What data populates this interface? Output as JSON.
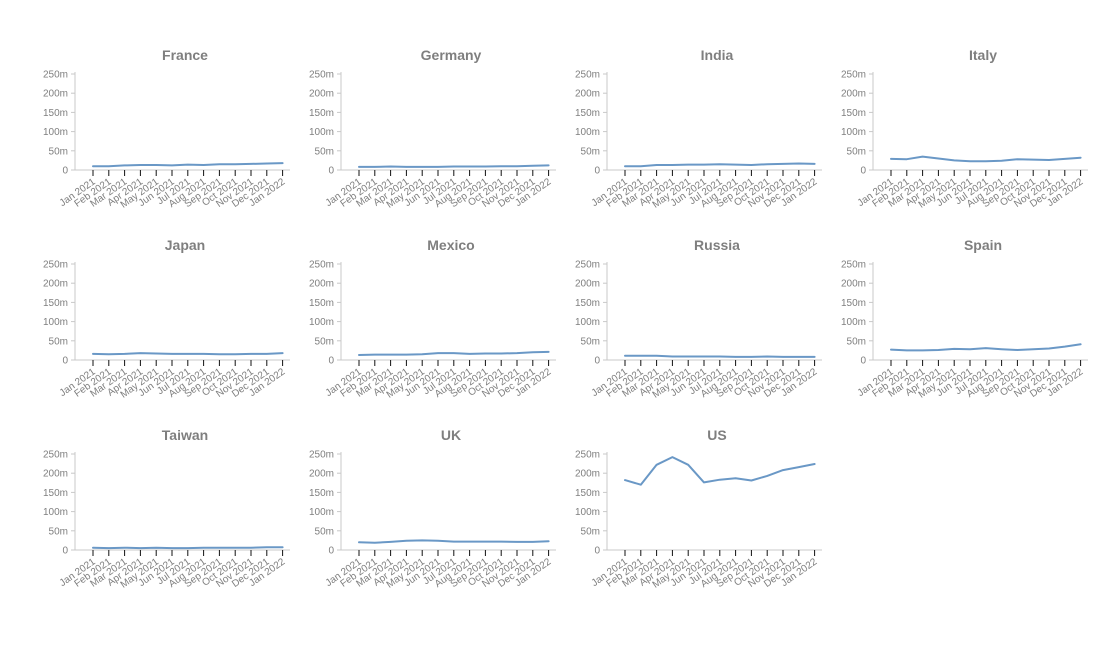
{
  "colors": {
    "line": "#6a98c6",
    "text": "#7f7f7f",
    "axis": "#c8c8c8",
    "tick": "#111111"
  },
  "chart_data": {
    "type": "line",
    "layout": "small-multiples",
    "x": [
      "Jan 2021",
      "Feb 2021",
      "Mar 2021",
      "Apr 2021",
      "May 2021",
      "Jun 2021",
      "Jul 2021",
      "Aug 2021",
      "Sep 2021",
      "Oct 2021",
      "Nov 2021",
      "Dec 2021",
      "Jan 2022"
    ],
    "y_ticks": [
      0,
      50000000,
      100000000,
      150000000,
      200000000,
      250000000
    ],
    "y_tick_labels": [
      "0",
      "50m",
      "100m",
      "150m",
      "200m",
      "250m"
    ],
    "ylim": [
      0,
      260000000
    ],
    "grid": false,
    "panels": [
      {
        "title": "France",
        "values": [
          10000000.0,
          10000000.0,
          12000000.0,
          13000000.0,
          13000000.0,
          12000000.0,
          14000000.0,
          13000000.0,
          15000000.0,
          15000000.0,
          16000000.0,
          17000000.0,
          18000000.0
        ]
      },
      {
        "title": "Germany",
        "values": [
          8000000.0,
          8000000.0,
          9000000.0,
          8000000.0,
          8000000.0,
          8000000.0,
          9000000.0,
          9000000.0,
          9000000.0,
          10000000.0,
          10000000.0,
          11000000.0,
          12000000.0
        ]
      },
      {
        "title": "India",
        "values": [
          10000000.0,
          10000000.0,
          13000000.0,
          13000000.0,
          14000000.0,
          14000000.0,
          15000000.0,
          14000000.0,
          13000000.0,
          15000000.0,
          16000000.0,
          17000000.0,
          16000000.0
        ]
      },
      {
        "title": "Italy",
        "values": [
          29000000.0,
          28000000.0,
          35000000.0,
          30000000.0,
          25000000.0,
          23000000.0,
          23000000.0,
          24000000.0,
          28000000.0,
          27000000.0,
          26000000.0,
          29000000.0,
          32000000.0
        ]
      },
      {
        "title": "Japan",
        "values": [
          16000000.0,
          15000000.0,
          16000000.0,
          18000000.0,
          17000000.0,
          16000000.0,
          16000000.0,
          16000000.0,
          15000000.0,
          15000000.0,
          16000000.0,
          16000000.0,
          18000000.0
        ]
      },
      {
        "title": "Mexico",
        "values": [
          13000000.0,
          14000000.0,
          14000000.0,
          14000000.0,
          15000000.0,
          18000000.0,
          18000000.0,
          16000000.0,
          17000000.0,
          17000000.0,
          18000000.0,
          20000000.0,
          21000000.0
        ]
      },
      {
        "title": "Russia",
        "values": [
          11000000.0,
          11000000.0,
          11000000.0,
          9000000.0,
          9000000.0,
          9000000.0,
          9000000.0,
          8000000.0,
          8000000.0,
          9000000.0,
          8000000.0,
          8000000.0,
          8000000.0
        ]
      },
      {
        "title": "Spain",
        "values": [
          27000000.0,
          25000000.0,
          25000000.0,
          26000000.0,
          29000000.0,
          28000000.0,
          31000000.0,
          28000000.0,
          26000000.0,
          28000000.0,
          30000000.0,
          35000000.0,
          41000000.0
        ]
      },
      {
        "title": "Taiwan",
        "values": [
          6000000.0,
          5000000.0,
          6000000.0,
          5000000.0,
          6000000.0,
          5000000.0,
          5000000.0,
          6000000.0,
          6000000.0,
          6000000.0,
          6000000.0,
          7000000.0,
          7000000.0
        ]
      },
      {
        "title": "UK",
        "values": [
          20000000.0,
          19000000.0,
          21000000.0,
          24000000.0,
          25000000.0,
          24000000.0,
          22000000.0,
          22000000.0,
          22000000.0,
          22000000.0,
          21000000.0,
          21000000.0,
          23000000.0
        ]
      },
      {
        "title": "US",
        "values": [
          182000000.0,
          170000000.0,
          222000000.0,
          242000000.0,
          222000000.0,
          176000000.0,
          183000000.0,
          187000000.0,
          181000000.0,
          193000000.0,
          208000000.0,
          216000000.0,
          224000000.0
        ]
      }
    ]
  }
}
